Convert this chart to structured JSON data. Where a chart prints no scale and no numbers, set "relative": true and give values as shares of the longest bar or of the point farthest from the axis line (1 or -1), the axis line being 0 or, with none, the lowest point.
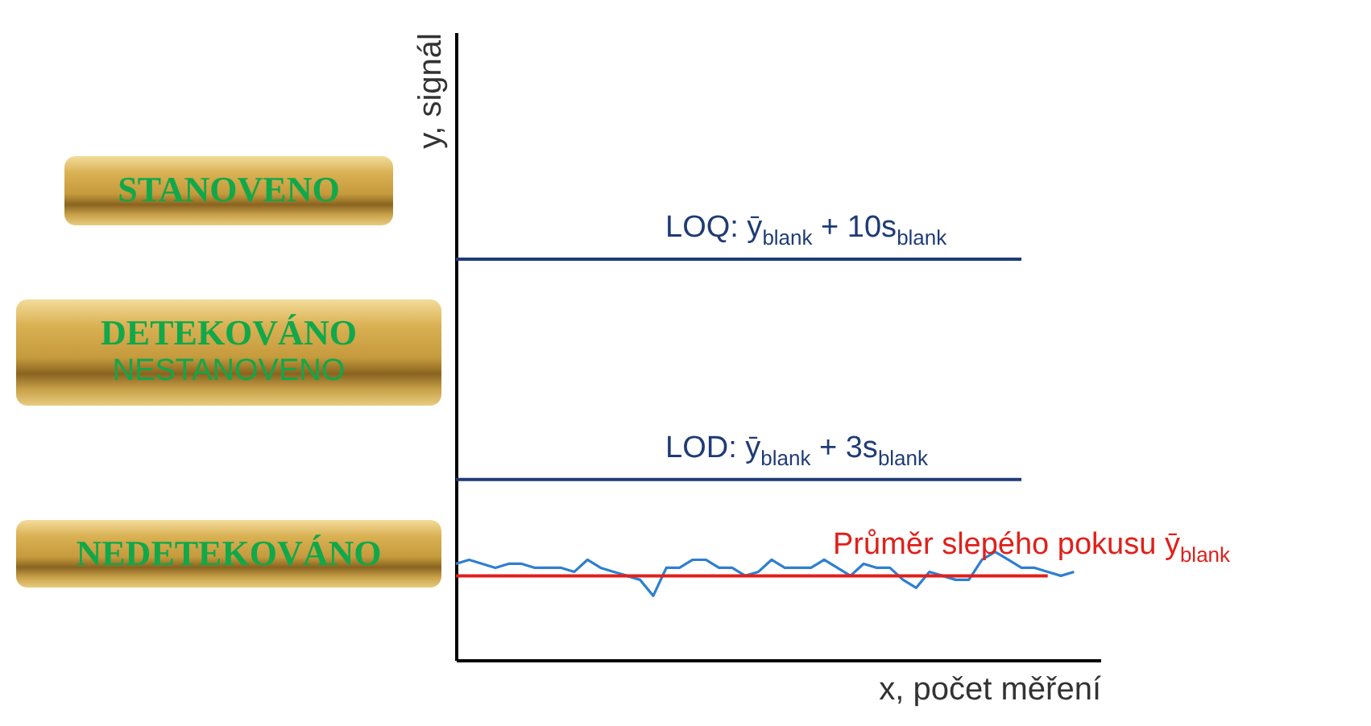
{
  "chart_data": {
    "type": "line",
    "relative": true,
    "xlabel": "x, počet měření",
    "ylabel": "y, signál",
    "categories": [
      null,
      null,
      null,
      null,
      null,
      null,
      null,
      null,
      null,
      null,
      null,
      null,
      null,
      null,
      null,
      null,
      null,
      null,
      null,
      null,
      null,
      null,
      null,
      null,
      null,
      null,
      null,
      null,
      null,
      null,
      null,
      null,
      null,
      null,
      null,
      null,
      null,
      null,
      null,
      null,
      null,
      null,
      null,
      null,
      null,
      null,
      null,
      null,
      null,
      null
    ],
    "annotations": [
      "STANOVENO",
      "DETEKOVÁNO",
      "NESTANOVENO",
      "NEDETEKOVÁNO"
    ],
    "series": [
      {
        "color": "#2e7fd0",
        "values": [
          0.24,
          0.25,
          0.24,
          0.23,
          0.24,
          0.24,
          0.23,
          0.23,
          0.23,
          0.22,
          0.25,
          0.23,
          0.22,
          0.21,
          0.2,
          0.16,
          0.23,
          0.23,
          0.25,
          0.25,
          0.23,
          0.23,
          0.21,
          0.22,
          0.25,
          0.23,
          0.23,
          0.23,
          0.25,
          0.23,
          0.21,
          0.24,
          0.23,
          0.23,
          0.2,
          0.18,
          0.22,
          0.21,
          0.2,
          0.2,
          0.25,
          0.27,
          0.25,
          0.23,
          0.23,
          0.22,
          0.21,
          0.22,
          null,
          null
        ]
      },
      {
        "name": "LOQ: ȳ$_{blank}$ + 10s$_{blank}$",
        "color": "#1f3b76",
        "values": [
          1,
          1,
          1,
          1,
          1,
          1,
          1,
          1,
          1,
          1,
          1,
          1,
          1,
          1,
          1,
          1,
          1,
          1,
          1,
          1,
          1,
          1,
          1,
          1,
          1,
          1,
          1,
          1,
          1,
          1,
          1,
          1,
          1,
          1,
          1,
          1,
          1,
          1,
          1,
          1,
          1,
          1,
          1,
          1,
          null,
          null,
          null,
          null,
          null,
          null
        ]
      },
      {
        "name": "LOD: ȳ$_{blank}$ + 3s$_{blank}$",
        "color": "#1f3b76",
        "values": [
          0.45,
          0.45,
          0.45,
          0.45,
          0.45,
          0.45,
          0.45,
          0.45,
          0.45,
          0.45,
          0.45,
          0.45,
          0.45,
          0.45,
          0.45,
          0.45,
          0.45,
          0.45,
          0.45,
          0.45,
          0.45,
          0.45,
          0.45,
          0.45,
          0.45,
          0.45,
          0.45,
          0.45,
          0.45,
          0.45,
          0.45,
          0.45,
          0.45,
          0.45,
          0.45,
          0.45,
          0.45,
          0.45,
          0.45,
          0.45,
          0.45,
          0.45,
          0.45,
          0.45,
          null,
          null,
          null,
          null,
          null,
          null
        ]
      },
      {
        "name": "Průměr slepého pokusu ȳ$_{blank}$",
        "color": "#e0201b",
        "values": [
          0.21,
          0.21,
          0.21,
          0.21,
          0.21,
          0.21,
          0.21,
          0.21,
          0.21,
          0.21,
          0.21,
          0.21,
          0.21,
          0.21,
          0.21,
          0.21,
          0.21,
          0.21,
          0.21,
          0.21,
          0.21,
          0.21,
          0.21,
          0.21,
          0.21,
          0.21,
          0.21,
          0.21,
          0.21,
          0.21,
          0.21,
          0.21,
          0.21,
          0.21,
          0.21,
          0.21,
          0.21,
          0.21,
          0.21,
          0.21,
          0.21,
          0.21,
          0.21,
          0.21,
          0.21,
          0.21,
          null,
          null,
          null,
          null
        ]
      }
    ]
  }
}
